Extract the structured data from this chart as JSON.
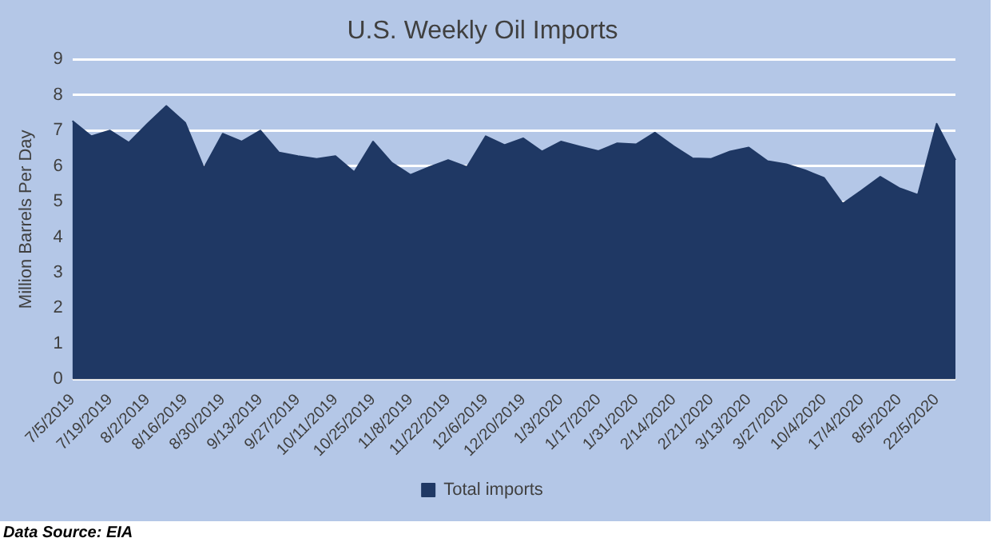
{
  "chart_data": {
    "type": "area",
    "title": "U.S. Weekly Oil Imports",
    "ylabel": "Million Barrels Per Day",
    "categories": [
      "7/5/2019",
      null,
      "7/19/2019",
      null,
      "8/2/2019",
      null,
      "8/16/2019",
      null,
      "8/30/2019",
      null,
      "9/13/2019",
      null,
      "9/27/2019",
      null,
      "10/11/2019",
      null,
      "10/25/2019",
      null,
      "11/8/2019",
      null,
      "11/22/2019",
      null,
      "12/6/2019",
      null,
      "12/20/2019",
      null,
      "1/3/2020",
      null,
      "1/17/2020",
      null,
      "1/31/2020",
      null,
      "2/14/2020",
      null,
      "2/21/2020",
      null,
      "3/13/2020",
      null,
      "3/27/2020",
      null,
      "10/4/2020",
      null,
      "17/4/2020",
      null,
      "8/5/2020",
      null,
      "22/5/2020",
      null
    ],
    "series": [
      {
        "name": "Total imports",
        "color": "#1f3864",
        "values": [
          7.27,
          6.84,
          7.0,
          6.66,
          7.19,
          7.69,
          7.22,
          5.94,
          6.91,
          6.69,
          7.0,
          6.38,
          6.28,
          6.2,
          6.28,
          5.83,
          6.69,
          6.09,
          5.75,
          5.97,
          6.17,
          5.97,
          6.84,
          6.59,
          6.78,
          6.41,
          6.69,
          6.55,
          6.42,
          6.64,
          6.61,
          6.94,
          6.56,
          6.22,
          6.2,
          6.41,
          6.52,
          6.14,
          6.05,
          5.88,
          5.67,
          4.94,
          5.31,
          5.7,
          5.38,
          5.19,
          7.19,
          6.17
        ]
      }
    ],
    "ylim": [
      0,
      9
    ],
    "yticks": [
      0,
      1,
      2,
      3,
      4,
      5,
      6,
      7,
      8,
      9
    ],
    "grid": "y",
    "legend": "bottom",
    "annotations": [
      "Data Source: EIA"
    ]
  }
}
